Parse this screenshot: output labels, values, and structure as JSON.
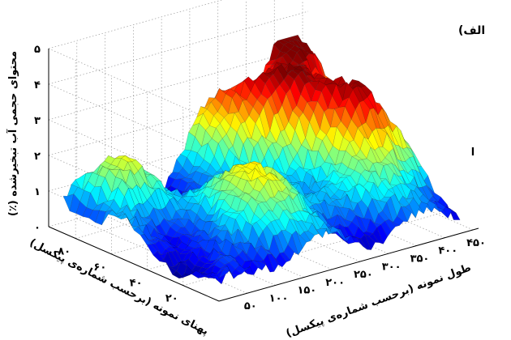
{
  "chart_data": {
    "type": "surface3d",
    "panel_label": "الف)",
    "right_edge_text": "ا",
    "x_axis": {
      "label": "طول نمونه (برحسب شماره‌ی پیکسل)",
      "ticks": [
        "۵۰",
        "۱۰۰",
        "۱۵۰",
        "۲۰۰",
        "۲۵۰",
        "۳۰۰",
        "۳۵۰",
        "۴۰۰",
        "۴۵۰"
      ],
      "tick_values": [
        50,
        100,
        150,
        200,
        250,
        300,
        350,
        400,
        450
      ],
      "range": [
        0,
        460
      ]
    },
    "y_axis": {
      "label": "پهنای نمونه (برحسب شماره‌ی پیکسل)",
      "ticks": [
        "۲۰",
        "۴۰",
        "۶۰",
        "۸۰"
      ],
      "tick_values": [
        20,
        40,
        60,
        80
      ],
      "range": [
        0,
        95
      ]
    },
    "z_axis": {
      "label": "محتوای حجمی آب تبخیرشده (٪)",
      "ticks": [
        "۰",
        "۱",
        "۲",
        "۳",
        "۴",
        "۵"
      ],
      "tick_values": [
        0,
        1,
        2,
        3,
        4,
        5
      ],
      "range": [
        0,
        5
      ]
    },
    "colormap": "jet",
    "grid": true,
    "surface_peaks": [
      {
        "x": 400,
        "y": 85,
        "z": 3.3
      },
      {
        "x": 380,
        "y": 40,
        "z": 2.6
      },
      {
        "x": 280,
        "y": 80,
        "z": 2.2
      },
      {
        "x": 180,
        "y": 30,
        "z": 2.0
      },
      {
        "x": 60,
        "y": 70,
        "z": 1.4
      }
    ],
    "surface_base": 0.2
  }
}
